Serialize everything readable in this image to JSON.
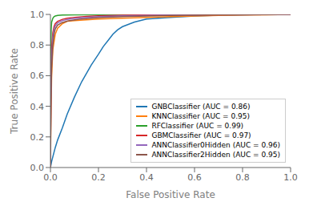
{
  "chart_data": {
    "type": "line",
    "xlabel": "False Positive Rate",
    "ylabel": "True Positive Rate",
    "xlim": [
      0.0,
      1.0
    ],
    "ylim": [
      0.0,
      1.0
    ],
    "xticks": [
      {
        "value": 0,
        "label": "0.0"
      },
      0.2,
      0.4,
      0.6,
      0.8,
      {
        "value": 1,
        "label": "1.0"
      }
    ],
    "yticks": [
      {
        "value": 0,
        "label": "0.0"
      },
      0.2,
      0.4,
      0.6,
      0.8,
      {
        "value": 1,
        "label": "1.0"
      }
    ],
    "grid": false,
    "legend": "lower right",
    "series": [
      {
        "name": "GNBClassifier (AUC = 0.86)",
        "color": "#1f77b4",
        "x": [
          0.0,
          0.005,
          0.01,
          0.02,
          0.03,
          0.05,
          0.07,
          0.1,
          0.13,
          0.17,
          0.2,
          0.22,
          0.24,
          0.26,
          0.28,
          0.3,
          0.35,
          0.4,
          0.5,
          0.6,
          0.7,
          0.8,
          0.9,
          1.0
        ],
        "values": [
          0.0,
          0.04,
          0.07,
          0.13,
          0.18,
          0.26,
          0.35,
          0.46,
          0.56,
          0.67,
          0.74,
          0.79,
          0.83,
          0.87,
          0.9,
          0.92,
          0.95,
          0.97,
          0.98,
          0.99,
          0.995,
          0.998,
          1.0,
          1.0
        ]
      },
      {
        "name": "KNNClassifier (AUC = 0.95)",
        "color": "#ff7f0e",
        "x": [
          0.0,
          0.002,
          0.005,
          0.01,
          0.02,
          0.03,
          0.05,
          0.07,
          0.1,
          0.15,
          0.2,
          0.3,
          0.4,
          0.5,
          0.6,
          0.7,
          0.8,
          0.9,
          1.0
        ],
        "values": [
          0.0,
          0.3,
          0.6,
          0.77,
          0.87,
          0.91,
          0.94,
          0.955,
          0.96,
          0.965,
          0.97,
          0.975,
          0.98,
          0.985,
          0.99,
          0.993,
          0.996,
          0.998,
          1.0
        ]
      },
      {
        "name": "RFClassifier (AUC = 0.99)",
        "color": "#2ca02c",
        "x": [
          0.0,
          0.001,
          0.003,
          0.005,
          0.01,
          0.015,
          0.02,
          0.03,
          0.05,
          0.1,
          0.2,
          0.4,
          0.6,
          0.8,
          1.0
        ],
        "values": [
          0.0,
          0.7,
          0.9,
          0.95,
          0.975,
          0.985,
          0.99,
          0.993,
          0.996,
          0.998,
          0.999,
          1.0,
          1.0,
          1.0,
          1.0
        ]
      },
      {
        "name": "GBMClassifier (AUC = 0.97)",
        "color": "#d62728",
        "x": [
          0.0,
          0.002,
          0.005,
          0.01,
          0.015,
          0.02,
          0.03,
          0.05,
          0.07,
          0.1,
          0.15,
          0.2,
          0.3,
          0.5,
          0.7,
          0.9,
          1.0
        ],
        "values": [
          0.0,
          0.55,
          0.78,
          0.88,
          0.92,
          0.94,
          0.955,
          0.968,
          0.975,
          0.981,
          0.987,
          0.991,
          0.995,
          0.998,
          0.999,
          1.0,
          1.0
        ]
      },
      {
        "name": "ANNClassifier0Hidden (AUC = 0.96)",
        "color": "#9467bd",
        "x": [
          0.0,
          0.002,
          0.005,
          0.01,
          0.015,
          0.02,
          0.03,
          0.05,
          0.08,
          0.12,
          0.2,
          0.3,
          0.5,
          0.7,
          0.9,
          1.0
        ],
        "values": [
          0.0,
          0.45,
          0.72,
          0.85,
          0.905,
          0.925,
          0.945,
          0.96,
          0.97,
          0.978,
          0.986,
          0.991,
          0.996,
          0.998,
          0.999,
          1.0
        ]
      },
      {
        "name": "ANNClassifier2Hidden (AUC = 0.95)",
        "color": "#8c564b",
        "x": [
          0.0,
          0.002,
          0.005,
          0.01,
          0.015,
          0.02,
          0.03,
          0.05,
          0.08,
          0.12,
          0.2,
          0.3,
          0.5,
          0.7,
          0.9,
          1.0
        ],
        "values": [
          0.0,
          0.4,
          0.65,
          0.8,
          0.87,
          0.905,
          0.93,
          0.948,
          0.96,
          0.969,
          0.979,
          0.986,
          0.993,
          0.997,
          0.999,
          1.0
        ]
      }
    ]
  }
}
